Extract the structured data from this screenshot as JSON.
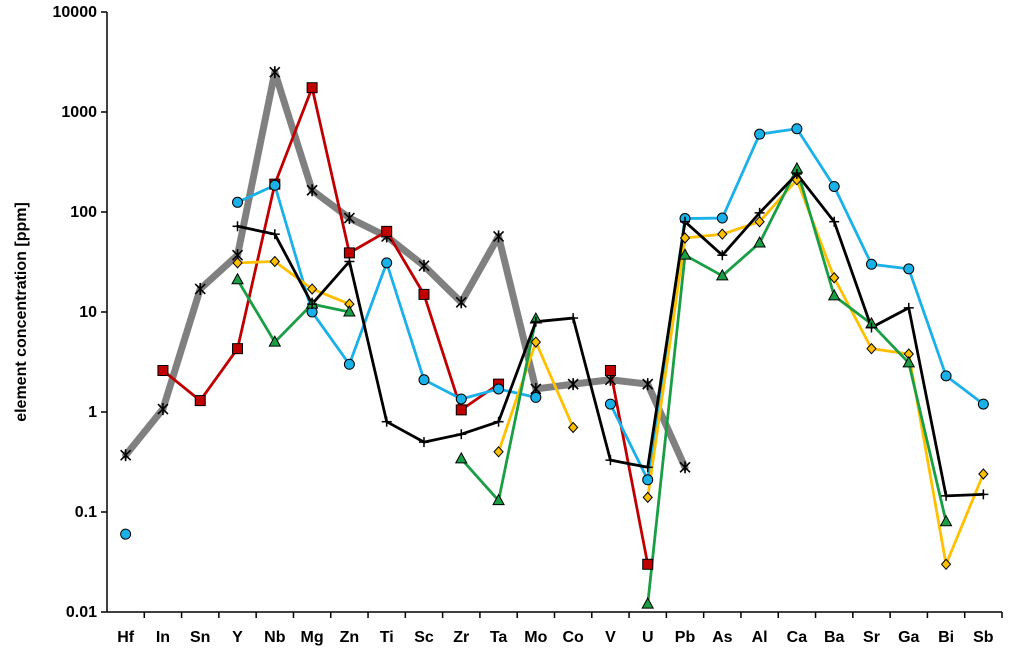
{
  "chart_data": {
    "type": "line",
    "title": "",
    "xlabel": "",
    "ylabel": "element concentration  [ppm]",
    "y_scale": "log",
    "ylim": [
      0.01,
      10000
    ],
    "y_ticks": [
      "0.01",
      "0.1",
      "1",
      "10",
      "100",
      "1000",
      "10000"
    ],
    "legend": "none",
    "grid": false,
    "categories": [
      "Hf",
      "In",
      "Sn",
      "Y",
      "Nb",
      "Mg",
      "Zn",
      "Ti",
      "Sc",
      "Zr",
      "Ta",
      "Mo",
      "Co",
      "V",
      "U",
      "Pb",
      "As",
      "Al",
      "Ca",
      "Ba",
      "Sr",
      "Ga",
      "Bi",
      "Sb"
    ],
    "series": [
      {
        "color": "#808080",
        "marker": "asterisk",
        "values": [
          0.37,
          1.07,
          17,
          37,
          2500,
          165,
          87,
          57,
          29,
          12.5,
          57,
          1.7,
          1.9,
          2.1,
          1.9,
          0.28,
          null,
          null,
          null,
          null,
          null,
          null,
          null,
          null
        ]
      },
      {
        "color": "#c00000",
        "marker": "square",
        "values": [
          null,
          2.6,
          1.3,
          4.3,
          190,
          1750,
          39,
          64,
          15,
          1.05,
          1.9,
          null,
          null,
          2.6,
          0.03,
          null,
          null,
          null,
          null,
          null,
          null,
          null,
          null,
          null
        ]
      },
      {
        "color": "#1ab0e8",
        "marker": "circle",
        "values": [
          0.06,
          null,
          null,
          125,
          185,
          10,
          3,
          31,
          2.1,
          1.35,
          1.7,
          1.4,
          null,
          1.2,
          0.21,
          86,
          87,
          600,
          680,
          180,
          30,
          27,
          2.3,
          1.2
        ]
      },
      {
        "color": "#ffc000",
        "marker": "diamond",
        "values": [
          null,
          null,
          null,
          31,
          32,
          17,
          12,
          null,
          null,
          null,
          0.4,
          5,
          0.7,
          null,
          0.14,
          55,
          60,
          80,
          210,
          22,
          4.3,
          3.8,
          0.03,
          0.24
        ]
      },
      {
        "color": "#1a9e45",
        "marker": "triangle",
        "values": [
          null,
          null,
          null,
          21,
          5,
          12,
          10,
          null,
          null,
          0.34,
          0.13,
          8.5,
          null,
          null,
          0.012,
          37,
          23,
          49,
          270,
          14.5,
          7.6,
          3.1,
          0.08,
          null
        ]
      },
      {
        "color": "#000000",
        "marker": "plus",
        "values": [
          null,
          null,
          null,
          72,
          60,
          12,
          32,
          0.8,
          0.5,
          0.6,
          0.8,
          8,
          8.7,
          0.33,
          0.28,
          80,
          37,
          98,
          240,
          80,
          7,
          11,
          0.145,
          0.15
        ]
      }
    ]
  }
}
